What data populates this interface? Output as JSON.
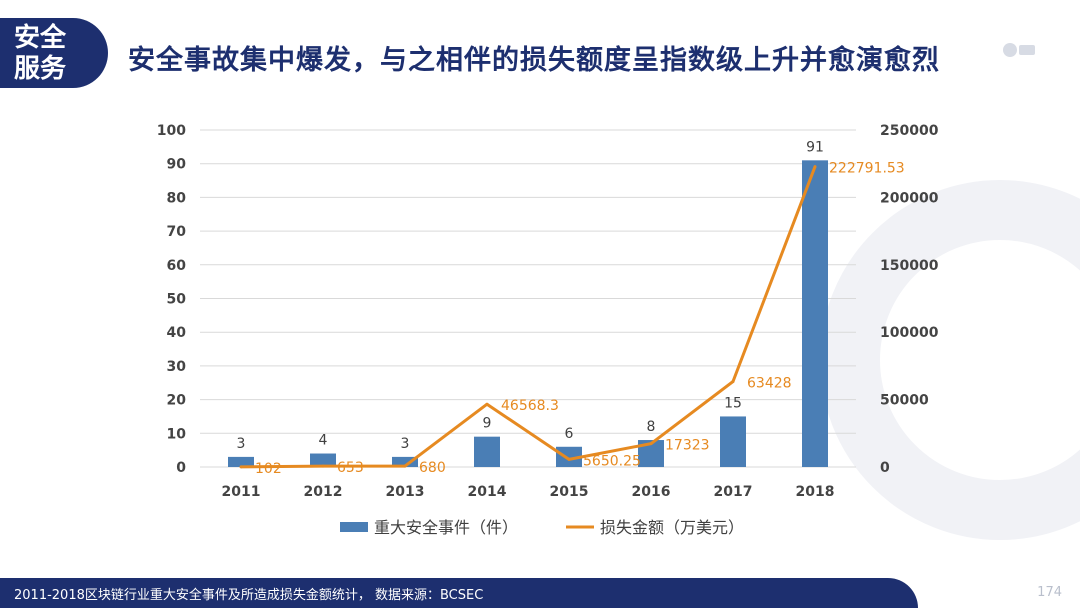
{
  "badge": {
    "line1": "安全",
    "line2": "服务"
  },
  "title": "安全事故集中爆发，与之相伴的损失额度呈指数级上升并愈演愈烈",
  "footer": "2011-2018区块链行业重大安全事件及所造成损失金额统计， 数据来源：BCSEC",
  "page_number": "174",
  "colors": {
    "navy": "#1d2f6f",
    "bar": "#4a7eb5",
    "line": "#e68a21",
    "axis_text": "#444444"
  },
  "chart_data": {
    "type": "bar+line",
    "categories": [
      "2011",
      "2012",
      "2013",
      "2014",
      "2015",
      "2016",
      "2017",
      "2018"
    ],
    "series": [
      {
        "name": "重大安全事件（件）",
        "type": "bar",
        "axis": "left",
        "values": [
          3,
          4,
          3,
          9,
          6,
          8,
          15,
          91
        ],
        "labels": [
          "3",
          "4",
          "3",
          "9",
          "6",
          "8",
          "15",
          "91"
        ]
      },
      {
        "name": "损失金额（万美元）",
        "type": "line",
        "axis": "right",
        "values": [
          102,
          653,
          680,
          46568.3,
          5650.25,
          17323,
          63428,
          222791.53
        ],
        "labels": [
          "102",
          "653",
          "680",
          "46568.3",
          "5650.25",
          "17323",
          "63428",
          "222791.53"
        ]
      }
    ],
    "y_left": {
      "min": 0,
      "max": 100,
      "ticks": [
        "0",
        "10",
        "20",
        "30",
        "40",
        "50",
        "60",
        "70",
        "80",
        "90",
        "100"
      ]
    },
    "y_right": {
      "min": 0,
      "max": 250000,
      "ticks": [
        "0",
        "50000",
        "100000",
        "150000",
        "200000",
        "250000"
      ]
    },
    "grid": true,
    "legend": "bottom"
  }
}
